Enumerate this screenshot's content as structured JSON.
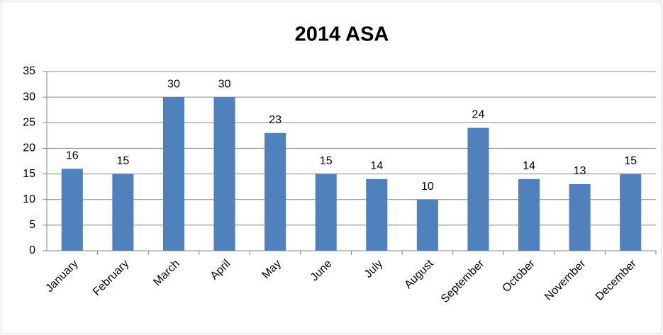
{
  "chart_data": {
    "type": "bar",
    "title": "2014 ASA",
    "categories": [
      "January",
      "February",
      "March",
      "April",
      "May",
      "June",
      "July",
      "August",
      "September",
      "October",
      "November",
      "December"
    ],
    "values": [
      16,
      15,
      30,
      30,
      23,
      15,
      14,
      10,
      24,
      14,
      13,
      15
    ],
    "color": "#4f81bd",
    "ylim": [
      0,
      35
    ],
    "yticks": [
      0,
      5,
      10,
      15,
      20,
      25,
      30,
      35
    ],
    "grid": true
  }
}
